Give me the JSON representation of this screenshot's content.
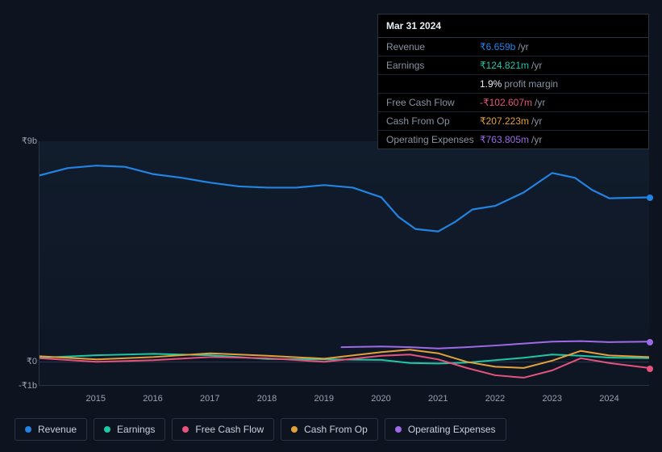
{
  "tooltip": {
    "date": "Mar 31 2024",
    "rows": [
      {
        "label": "Revenue",
        "value": "₹6.659b",
        "unit": "/yr",
        "color": "#2383e2"
      },
      {
        "label": "Earnings",
        "value": "₹124.821m",
        "unit": "/yr",
        "color": "#1ec7a6"
      },
      {
        "label": "",
        "value": "1.9%",
        "unit": "profit margin",
        "color": "#e8ecf2"
      },
      {
        "label": "Free Cash Flow",
        "value": "-₹102.607m",
        "unit": "/yr",
        "color": "#e6537c"
      },
      {
        "label": "Cash From Op",
        "value": "₹207.223m",
        "unit": "/yr",
        "color": "#e2a13b"
      },
      {
        "label": "Operating Expenses",
        "value": "₹763.805m",
        "unit": "/yr",
        "color": "#9d6ae8"
      }
    ]
  },
  "chart": {
    "background_color": "#0d1420",
    "grid_color": "#2a3444",
    "y_axis": {
      "labels": [
        {
          "text": "₹9b",
          "value": 9
        },
        {
          "text": "₹0",
          "value": 0
        },
        {
          "text": "-₹1b",
          "value": -1
        }
      ],
      "min": -1,
      "max": 9
    },
    "x_axis": {
      "labels": [
        "2015",
        "2016",
        "2017",
        "2018",
        "2019",
        "2020",
        "2021",
        "2022",
        "2023",
        "2024"
      ],
      "min": 2014,
      "max": 2024.7
    },
    "series": [
      {
        "name": "Revenue",
        "color": "#2383e2",
        "width": 2.2,
        "end_dot": true,
        "points": [
          [
            2014,
            7.6
          ],
          [
            2014.5,
            7.9
          ],
          [
            2015,
            8.0
          ],
          [
            2015.5,
            7.95
          ],
          [
            2016,
            7.65
          ],
          [
            2016.5,
            7.5
          ],
          [
            2017,
            7.3
          ],
          [
            2017.5,
            7.15
          ],
          [
            2018,
            7.1
          ],
          [
            2018.5,
            7.1
          ],
          [
            2019,
            7.2
          ],
          [
            2019.5,
            7.1
          ],
          [
            2020,
            6.7
          ],
          [
            2020.3,
            5.9
          ],
          [
            2020.6,
            5.4
          ],
          [
            2021,
            5.3
          ],
          [
            2021.3,
            5.7
          ],
          [
            2021.6,
            6.2
          ],
          [
            2022,
            6.35
          ],
          [
            2022.5,
            6.9
          ],
          [
            2023,
            7.7
          ],
          [
            2023.4,
            7.5
          ],
          [
            2023.7,
            7.0
          ],
          [
            2024,
            6.66
          ],
          [
            2024.7,
            6.7
          ]
        ]
      },
      {
        "name": "Earnings",
        "color": "#1ec7a6",
        "width": 2,
        "end_dot": false,
        "points": [
          [
            2014,
            0.12
          ],
          [
            2015,
            0.22
          ],
          [
            2016,
            0.28
          ],
          [
            2017,
            0.22
          ],
          [
            2018,
            0.07
          ],
          [
            2019,
            0.05
          ],
          [
            2020,
            0.03
          ],
          [
            2020.5,
            -0.1
          ],
          [
            2021,
            -0.12
          ],
          [
            2021.5,
            -0.08
          ],
          [
            2022,
            0.02
          ],
          [
            2022.5,
            0.12
          ],
          [
            2023,
            0.25
          ],
          [
            2023.5,
            0.2
          ],
          [
            2024,
            0.125
          ],
          [
            2024.7,
            0.1
          ]
        ]
      },
      {
        "name": "Free Cash Flow",
        "color": "#e6537c",
        "width": 2,
        "end_dot": true,
        "points": [
          [
            2014,
            0.1
          ],
          [
            2015,
            -0.05
          ],
          [
            2016,
            0.02
          ],
          [
            2017,
            0.15
          ],
          [
            2018,
            0.1
          ],
          [
            2019,
            -0.05
          ],
          [
            2020,
            0.2
          ],
          [
            2020.5,
            0.25
          ],
          [
            2021,
            0.05
          ],
          [
            2021.5,
            -0.3
          ],
          [
            2022,
            -0.6
          ],
          [
            2022.5,
            -0.7
          ],
          [
            2023,
            -0.4
          ],
          [
            2023.5,
            0.1
          ],
          [
            2024,
            -0.1
          ],
          [
            2024.7,
            -0.3
          ]
        ]
      },
      {
        "name": "Cash From Op",
        "color": "#e2a13b",
        "width": 2,
        "end_dot": false,
        "points": [
          [
            2014,
            0.18
          ],
          [
            2015,
            0.05
          ],
          [
            2016,
            0.15
          ],
          [
            2017,
            0.3
          ],
          [
            2018,
            0.2
          ],
          [
            2019,
            0.08
          ],
          [
            2020,
            0.35
          ],
          [
            2020.5,
            0.45
          ],
          [
            2021,
            0.3
          ],
          [
            2021.5,
            -0.05
          ],
          [
            2022,
            -0.25
          ],
          [
            2022.5,
            -0.3
          ],
          [
            2023,
            0.0
          ],
          [
            2023.5,
            0.4
          ],
          [
            2024,
            0.21
          ],
          [
            2024.7,
            0.15
          ]
        ]
      },
      {
        "name": "Operating Expenses",
        "color": "#9d6ae8",
        "width": 2,
        "end_dot": true,
        "points": [
          [
            2019.3,
            0.55
          ],
          [
            2020,
            0.58
          ],
          [
            2020.5,
            0.55
          ],
          [
            2021,
            0.5
          ],
          [
            2021.5,
            0.55
          ],
          [
            2022,
            0.62
          ],
          [
            2022.5,
            0.7
          ],
          [
            2023,
            0.78
          ],
          [
            2023.5,
            0.8
          ],
          [
            2024,
            0.76
          ],
          [
            2024.7,
            0.78
          ]
        ]
      }
    ]
  },
  "legend": [
    {
      "label": "Revenue",
      "color": "#2383e2"
    },
    {
      "label": "Earnings",
      "color": "#1ec7a6"
    },
    {
      "label": "Free Cash Flow",
      "color": "#e6537c"
    },
    {
      "label": "Cash From Op",
      "color": "#e2a13b"
    },
    {
      "label": "Operating Expenses",
      "color": "#9d6ae8"
    }
  ]
}
